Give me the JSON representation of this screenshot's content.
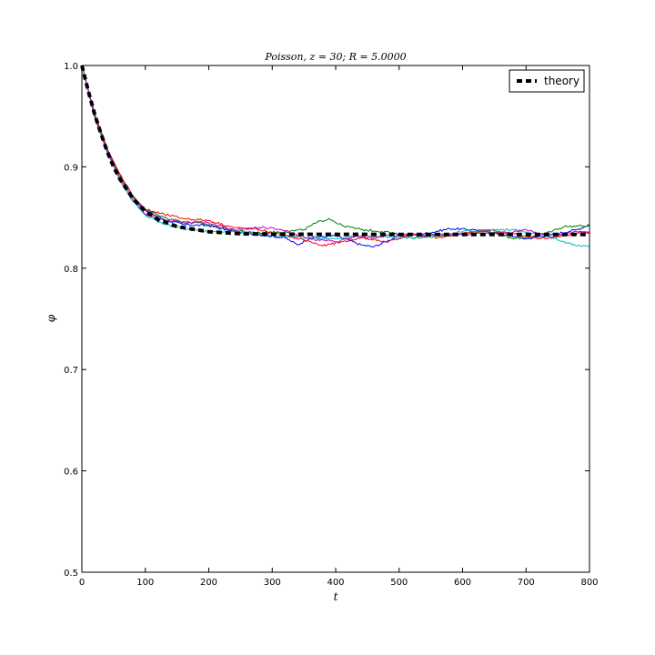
{
  "chart_data": {
    "type": "line",
    "title": "$Poisson, z=30; R=5.0000$",
    "title_display": "Poisson, z = 30; R = 5.0000",
    "xlabel": "t",
    "ylabel": "φ",
    "xlim": [
      0,
      800
    ],
    "ylim": [
      0.5,
      1.0
    ],
    "xticks": [
      0,
      100,
      200,
      300,
      400,
      500,
      600,
      700,
      800
    ],
    "xtick_labels": [
      "0",
      "100",
      "200",
      "300",
      "400",
      "500",
      "600",
      "700",
      "800"
    ],
    "yticks": [
      0.5,
      0.6,
      0.7,
      0.8,
      0.9,
      1.0
    ],
    "ytick_labels": [
      "0.5",
      "0.6",
      "0.7",
      "0.8",
      "0.9",
      "1.0"
    ],
    "grid": false,
    "legend": {
      "placement": "top-right",
      "entries": [
        "theory"
      ]
    },
    "theory": {
      "label": "theory",
      "color": "#000000",
      "style": "dashed",
      "x": [
        0,
        10,
        20,
        30,
        40,
        50,
        60,
        80,
        100,
        120,
        150,
        200,
        250,
        300,
        400,
        500,
        600,
        700,
        800
      ],
      "y": [
        1.0,
        0.975,
        0.952,
        0.933,
        0.915,
        0.9,
        0.888,
        0.869,
        0.856,
        0.848,
        0.841,
        0.836,
        0.834,
        0.8335,
        0.8334,
        0.8333,
        0.8333,
        0.8333,
        0.8333
      ]
    },
    "series": [
      {
        "color": "#0000ff",
        "x": [
          0,
          20,
          40,
          60,
          80,
          100,
          130,
          160,
          200,
          240,
          280,
          320,
          340,
          360,
          400,
          440,
          460,
          500,
          540,
          580,
          620,
          660,
          700,
          740,
          780,
          800
        ],
        "y": [
          1.0,
          0.952,
          0.916,
          0.889,
          0.87,
          0.857,
          0.848,
          0.843,
          0.842,
          0.836,
          0.833,
          0.83,
          0.823,
          0.83,
          0.832,
          0.823,
          0.821,
          0.832,
          0.834,
          0.839,
          0.838,
          0.834,
          0.829,
          0.833,
          0.838,
          0.843
        ]
      },
      {
        "color": "#008000",
        "x": [
          0,
          20,
          40,
          60,
          80,
          100,
          130,
          160,
          200,
          240,
          280,
          320,
          350,
          370,
          390,
          410,
          440,
          480,
          520,
          560,
          600,
          640,
          680,
          720,
          760,
          800
        ],
        "y": [
          1.0,
          0.953,
          0.918,
          0.892,
          0.872,
          0.858,
          0.85,
          0.846,
          0.843,
          0.837,
          0.835,
          0.836,
          0.838,
          0.845,
          0.849,
          0.842,
          0.838,
          0.836,
          0.83,
          0.833,
          0.834,
          0.837,
          0.829,
          0.832,
          0.841,
          0.842
        ]
      },
      {
        "color": "#ff0000",
        "x": [
          0,
          20,
          40,
          60,
          80,
          100,
          130,
          160,
          200,
          240,
          280,
          320,
          350,
          380,
          410,
          440,
          480,
          520,
          560,
          600,
          640,
          680,
          720,
          760,
          800
        ],
        "y": [
          1.0,
          0.951,
          0.917,
          0.893,
          0.871,
          0.858,
          0.853,
          0.849,
          0.847,
          0.84,
          0.838,
          0.832,
          0.828,
          0.822,
          0.826,
          0.83,
          0.826,
          0.833,
          0.83,
          0.834,
          0.838,
          0.834,
          0.829,
          0.832,
          0.836
        ]
      },
      {
        "color": "#00bfbf",
        "x": [
          0,
          20,
          40,
          60,
          80,
          100,
          130,
          160,
          200,
          240,
          280,
          320,
          360,
          400,
          440,
          480,
          520,
          560,
          600,
          640,
          680,
          720,
          760,
          780,
          800
        ],
        "y": [
          1.0,
          0.949,
          0.914,
          0.887,
          0.866,
          0.852,
          0.843,
          0.839,
          0.836,
          0.836,
          0.834,
          0.831,
          0.83,
          0.829,
          0.832,
          0.831,
          0.83,
          0.832,
          0.836,
          0.838,
          0.838,
          0.833,
          0.826,
          0.822,
          0.822
        ]
      },
      {
        "color": "#bf00bf",
        "x": [
          0,
          20,
          40,
          60,
          80,
          100,
          130,
          160,
          200,
          240,
          280,
          300,
          330,
          360,
          400,
          430,
          460,
          500,
          540,
          580,
          620,
          660,
          700,
          740,
          780,
          800
        ],
        "y": [
          1.0,
          0.95,
          0.915,
          0.889,
          0.868,
          0.853,
          0.847,
          0.845,
          0.845,
          0.838,
          0.84,
          0.84,
          0.835,
          0.829,
          0.826,
          0.831,
          0.83,
          0.834,
          0.832,
          0.833,
          0.834,
          0.834,
          0.838,
          0.831,
          0.836,
          0.835
        ]
      }
    ]
  }
}
